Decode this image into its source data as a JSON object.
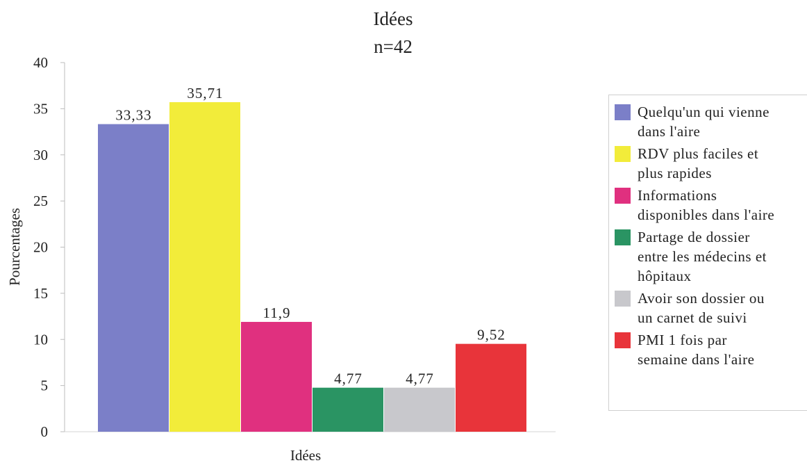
{
  "chart_data": {
    "type": "bar",
    "title": "Idées",
    "subtitle": "n=42",
    "xlabel": "Idées",
    "ylabel": "Pourcentages",
    "ylim": [
      0,
      40
    ],
    "yticks": [
      0,
      5,
      10,
      15,
      20,
      25,
      30,
      35,
      40
    ],
    "grid": false,
    "legend_position": "right",
    "series": [
      {
        "name": "Quelqu'un qui vienne dans l'aire",
        "value": 33.33,
        "label": "33,33",
        "color": "#7b7fc8"
      },
      {
        "name": "RDV plus faciles et plus rapides",
        "value": 35.71,
        "label": "35,71",
        "color": "#f2ec3a"
      },
      {
        "name": "Informations disponibles dans l'aire",
        "value": 11.9,
        "label": "11,9",
        "color": "#e0307f"
      },
      {
        "name": "Partage de dossier entre les médecins et hôpitaux",
        "value": 4.77,
        "label": "4,77",
        "color": "#2a9463"
      },
      {
        "name": "Avoir son dossier ou un carnet de suivi",
        "value": 4.77,
        "label": "4,77",
        "color": "#c8c8cc"
      },
      {
        "name": "PMI 1 fois par semaine dans l'aire",
        "value": 9.52,
        "label": "9,52",
        "color": "#e8343a"
      }
    ]
  },
  "legend": {
    "items": [
      {
        "lines": [
          "Quelqu'un qui vienne",
          "dans l'aire"
        ],
        "color": "#7b7fc8"
      },
      {
        "lines": [
          "RDV plus faciles et",
          "plus rapides"
        ],
        "color": "#f2ec3a"
      },
      {
        "lines": [
          "Informations",
          "disponibles dans l'aire"
        ],
        "color": "#e0307f"
      },
      {
        "lines": [
          "Partage de dossier",
          "entre les médecins et",
          "hôpitaux"
        ],
        "color": "#2a9463"
      },
      {
        "lines": [
          "Avoir son dossier ou",
          "un carnet de suivi"
        ],
        "color": "#c8c8cc"
      },
      {
        "lines": [
          "PMI 1 fois par",
          "semaine dans l'aire"
        ],
        "color": "#e8343a"
      }
    ]
  }
}
